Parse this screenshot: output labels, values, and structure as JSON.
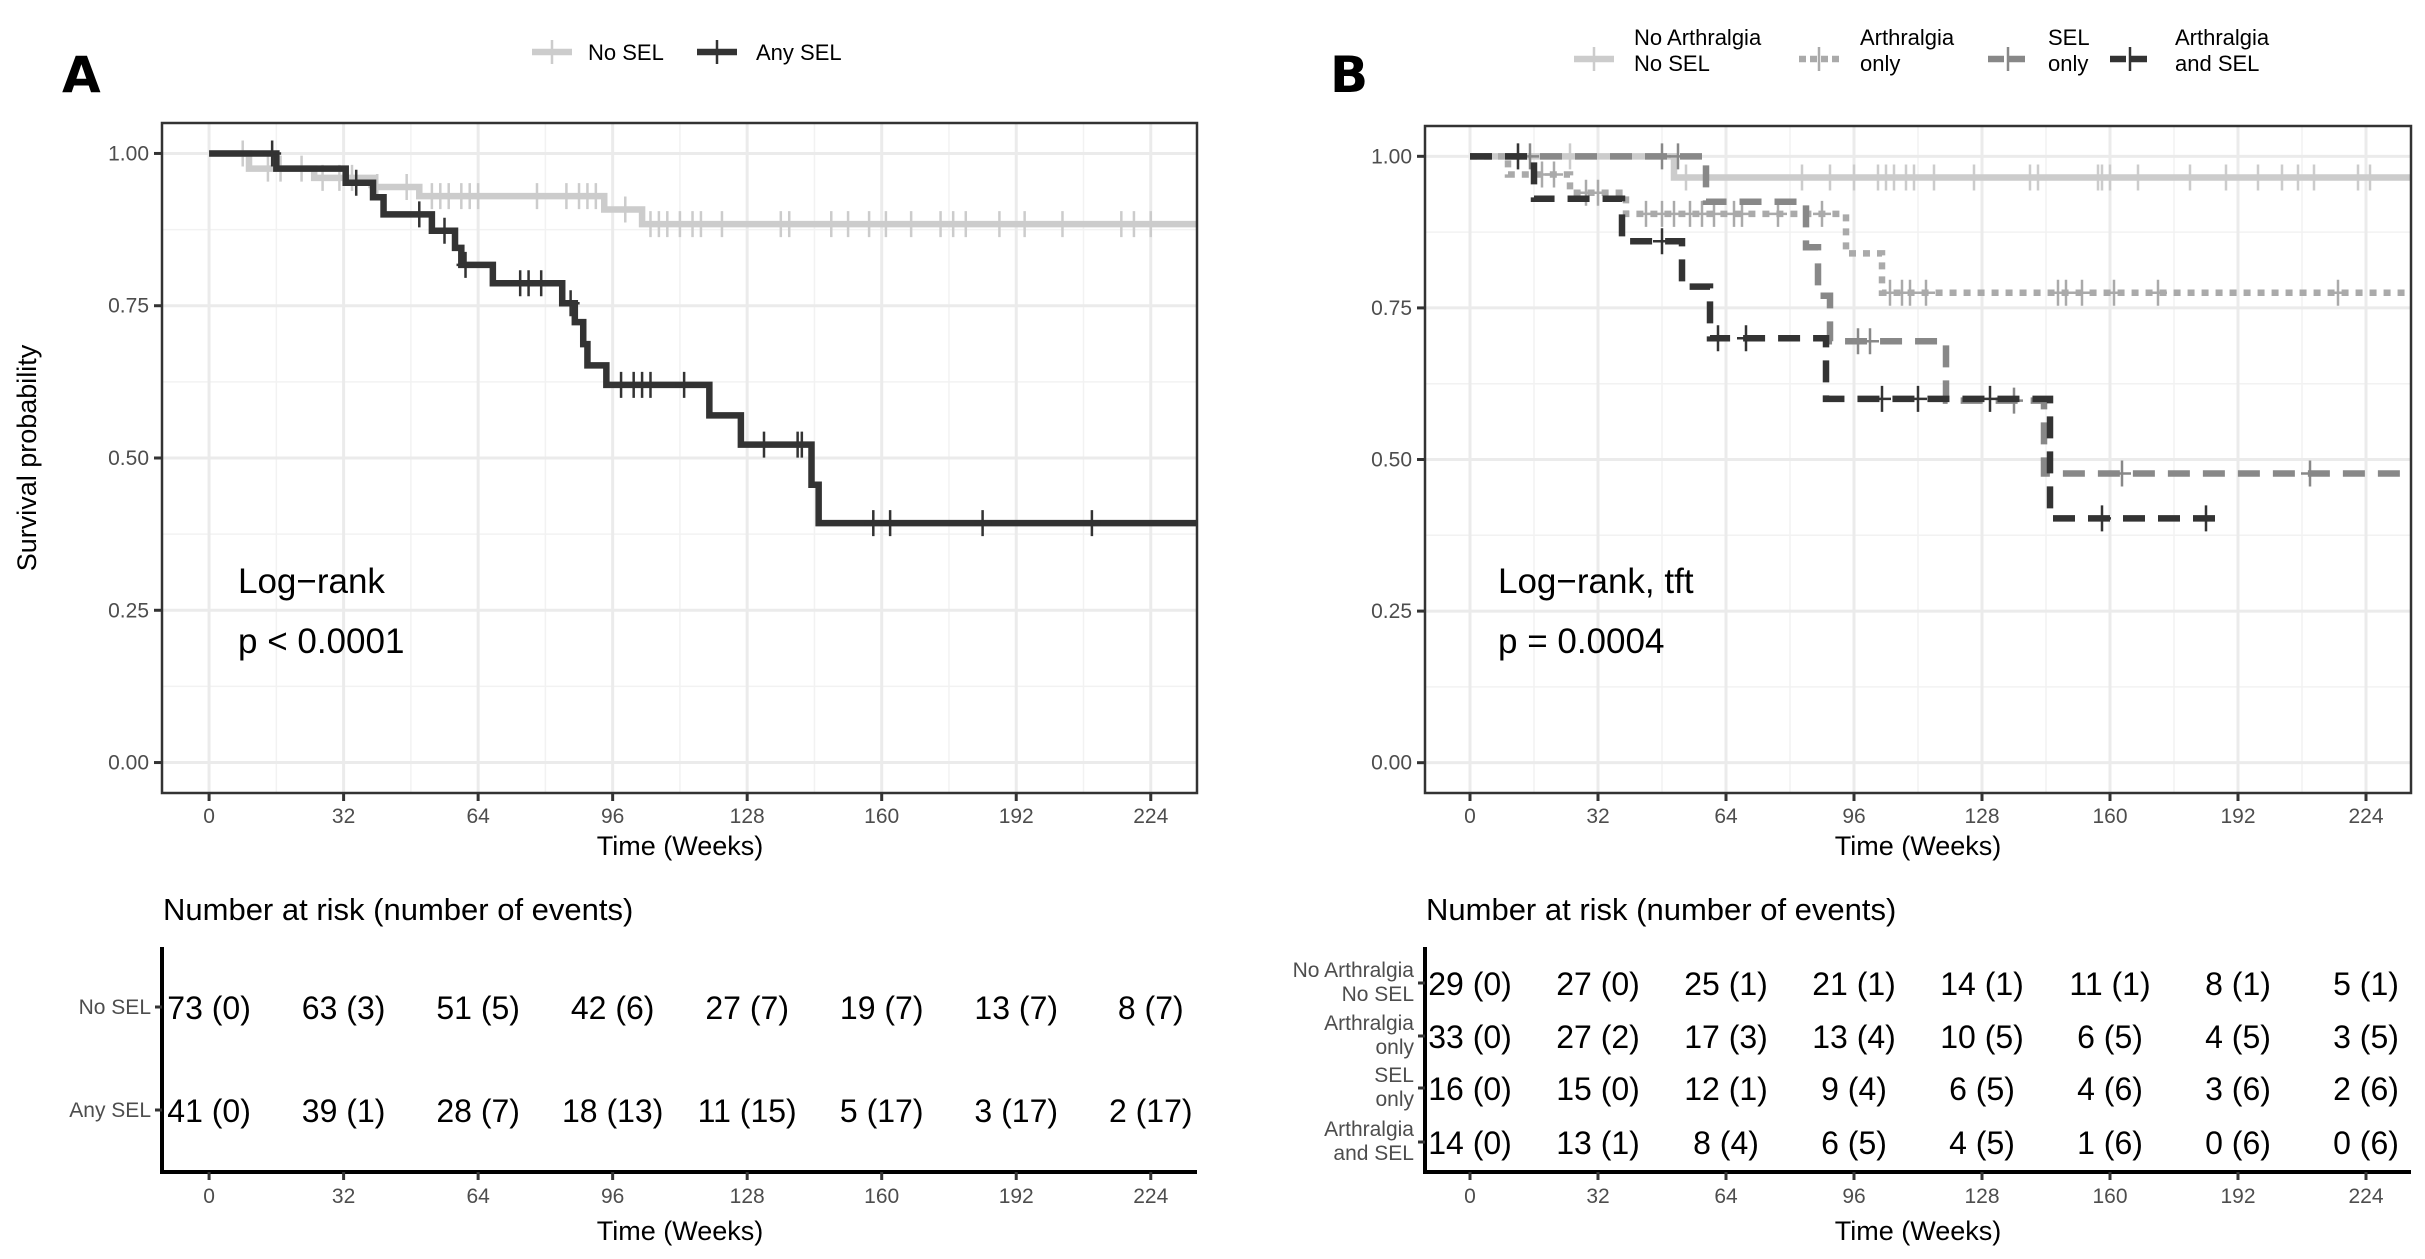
{
  "chart_data": [
    {
      "panel": "A",
      "type": "line",
      "subtype": "kaplan-meier",
      "title": "",
      "xlabel": "Time (Weeks)",
      "ylabel": "Survival probability",
      "xlim": [
        -11.2,
        235
      ],
      "ylim": [
        -0.05,
        1.05
      ],
      "x_ticks": [
        0,
        32,
        64,
        96,
        128,
        160,
        192,
        224
      ],
      "y_ticks": [
        0,
        0.25,
        0.5,
        0.75,
        1.0
      ],
      "y_tick_labels": [
        "0.00",
        "0.25",
        "0.50",
        "0.75",
        "1.00"
      ],
      "grid": true,
      "legend_position": "top",
      "annotation": [
        "Log−rank",
        "p < 0.0001"
      ],
      "series": [
        {
          "name": "No SEL",
          "color": "#cccccc",
          "dash": "solid",
          "steps": [
            [
              0,
              1.0
            ],
            [
              9.5,
              0.975
            ],
            [
              25,
              0.96
            ],
            [
              39,
              0.945
            ],
            [
              50,
              0.93
            ],
            [
              94,
              0.908
            ],
            [
              103,
              0.884
            ]
          ],
          "end": 235,
          "censors": [
            8,
            14,
            17,
            22,
            27,
            31,
            34,
            40,
            47,
            53,
            55,
            57,
            60,
            62,
            64,
            78,
            85,
            88,
            90,
            92,
            99,
            105,
            107,
            109,
            112,
            115,
            117,
            122,
            136,
            138,
            148,
            152,
            157,
            161,
            167,
            174,
            177,
            180,
            188,
            194,
            203,
            217,
            220,
            224
          ]
        },
        {
          "name": "Any SEL",
          "color": "#333333",
          "dash": "solid",
          "steps": [
            [
              0,
              1.0
            ],
            [
              16,
              0.975
            ],
            [
              32.5,
              0.952
            ],
            [
              39,
              0.928
            ],
            [
              41.5,
              0.9
            ],
            [
              53,
              0.873
            ],
            [
              58.5,
              0.845
            ],
            [
              60,
              0.817
            ],
            [
              67.5,
              0.787
            ],
            [
              84,
              0.754
            ],
            [
              87,
              0.723
            ],
            [
              89,
              0.687
            ],
            [
              90,
              0.652
            ],
            [
              94.5,
              0.62
            ],
            [
              119,
              0.57
            ],
            [
              126.5,
              0.522
            ],
            [
              143.3,
              0.456
            ],
            [
              145,
              0.393
            ]
          ],
          "end": 235,
          "censors": [
            15,
            35,
            50,
            56,
            61,
            74,
            76,
            79,
            86,
            98,
            101,
            103,
            105,
            113,
            132,
            140,
            141,
            158,
            162,
            184,
            210
          ]
        }
      ],
      "risk_table": {
        "title": "Number at risk (number of events)",
        "xlabel": "Time (Weeks)",
        "times": [
          0,
          32,
          64,
          96,
          128,
          160,
          192,
          224
        ],
        "rows": [
          {
            "label": "No SEL",
            "cells": [
              "73 (0)",
              "63 (3)",
              "51 (5)",
              "42 (6)",
              "27 (7)",
              "19 (7)",
              "13 (7)",
              "8 (7)"
            ]
          },
          {
            "label": "Any SEL",
            "cells": [
              "41 (0)",
              "39 (1)",
              "28 (7)",
              "18 (13)",
              "11 (15)",
              "5 (17)",
              "3 (17)",
              "2 (17)"
            ]
          }
        ]
      }
    },
    {
      "panel": "B",
      "type": "line",
      "subtype": "kaplan-meier",
      "title": "",
      "xlabel": "Time (Weeks)",
      "ylabel": "",
      "xlim": [
        -11.25,
        235.25
      ],
      "ylim": [
        -0.05,
        1.05
      ],
      "x_ticks": [
        0,
        32,
        64,
        96,
        128,
        160,
        192,
        224
      ],
      "y_ticks": [
        0,
        0.25,
        0.5,
        0.75,
        1.0
      ],
      "y_tick_labels": [
        "0.00",
        "0.25",
        "0.50",
        "0.75",
        "1.00"
      ],
      "grid": true,
      "legend_position": "top",
      "annotation": [
        "Log−rank, tft",
        "p = 0.0004"
      ],
      "series": [
        {
          "name": "No Arthralgia No SEL",
          "legend_lines": [
            "No Arthralgia",
            "No SEL"
          ],
          "color": "#cccccc",
          "dash": "solid",
          "steps": [
            [
              0,
              1.0
            ],
            [
              51,
              0.965
            ]
          ],
          "end": 235,
          "censors": [
            12,
            25,
            54,
            83,
            90,
            96,
            102,
            104,
            106,
            109,
            111,
            116,
            126,
            140,
            142,
            157,
            158,
            160,
            167,
            180,
            189,
            197,
            203,
            207,
            211,
            222,
            225
          ]
        },
        {
          "name": "Arthralgia only",
          "legend_lines": [
            "Arthralgia",
            "only"
          ],
          "color": "#aaaaaa",
          "dash": "short",
          "steps": [
            [
              0,
              1.0
            ],
            [
              9.5,
              0.97
            ],
            [
              25,
              0.94
            ],
            [
              39,
              0.905
            ],
            [
              94,
              0.84
            ],
            [
              103,
              0.775
            ]
          ],
          "end": 235,
          "censors": [
            18,
            21,
            29,
            32,
            44,
            48,
            51,
            55,
            58,
            61,
            66,
            68,
            77,
            88,
            105,
            108,
            110,
            114,
            147,
            149,
            153,
            161,
            172,
            217
          ]
        },
        {
          "name": "SEL only",
          "legend_lines": [
            "SEL",
            "only"
          ],
          "color": "#888888",
          "dash": "long",
          "steps": [
            [
              0,
              1.0
            ],
            [
              59,
              0.925
            ],
            [
              84,
              0.85
            ],
            [
              87,
              0.77
            ],
            [
              90,
              0.695
            ],
            [
              119,
              0.597
            ],
            [
              143.5,
              0.477
            ]
          ],
          "end": 235,
          "censors": [
            15,
            48,
            52,
            97,
            100,
            136,
            163,
            210
          ]
        },
        {
          "name": "Arthralgia and SEL",
          "legend_lines": [
            "Arthralgia",
            "and SEL"
          ],
          "color": "#333333",
          "dash": "long",
          "steps": [
            [
              0,
              1.0
            ],
            [
              16,
              0.93
            ],
            [
              38,
              0.86
            ],
            [
              53,
              0.785
            ],
            [
              60,
              0.7
            ],
            [
              89,
              0.6
            ],
            [
              145,
              0.403
            ]
          ],
          "end": 187,
          "censors": [
            12,
            48,
            62,
            69,
            103,
            112,
            130,
            158,
            184
          ]
        }
      ],
      "risk_table": {
        "title": "Number at risk (number of events)",
        "xlabel": "Time (Weeks)",
        "times": [
          0,
          32,
          64,
          96,
          128,
          160,
          192,
          224
        ],
        "rows": [
          {
            "label": "No Arthralgia No SEL",
            "label_lines": [
              "No Arthralgia",
              "No SEL"
            ],
            "cells": [
              "29 (0)",
              "27 (0)",
              "25 (1)",
              "21 (1)",
              "14 (1)",
              "11 (1)",
              "8 (1)",
              "5 (1)"
            ]
          },
          {
            "label": "Arthralgia only",
            "label_lines": [
              "Arthralgia",
              "only"
            ],
            "cells": [
              "33 (0)",
              "27 (2)",
              "17 (3)",
              "13 (4)",
              "10 (5)",
              "6 (5)",
              "4 (5)",
              "3 (5)"
            ]
          },
          {
            "label": "SEL only",
            "label_lines": [
              "SEL",
              "only"
            ],
            "cells": [
              "16 (0)",
              "15 (0)",
              "12 (1)",
              "9 (4)",
              "6 (5)",
              "4 (6)",
              "3 (6)",
              "2 (6)"
            ]
          },
          {
            "label": "Arthralgia and SEL",
            "label_lines": [
              "Arthralgia",
              "and SEL"
            ],
            "cells": [
              "14 (0)",
              "13 (1)",
              "8 (4)",
              "6 (5)",
              "4 (5)",
              "1 (6)",
              "0 (6)",
              "0 (6)"
            ]
          }
        ]
      }
    }
  ],
  "panels": {
    "a_label": "A",
    "b_label": "B"
  },
  "style": {
    "grid_major": "#ebebeb",
    "grid_minor": "#f2f2f2",
    "border": "#333333",
    "tick_text": "#4d4d4d"
  }
}
